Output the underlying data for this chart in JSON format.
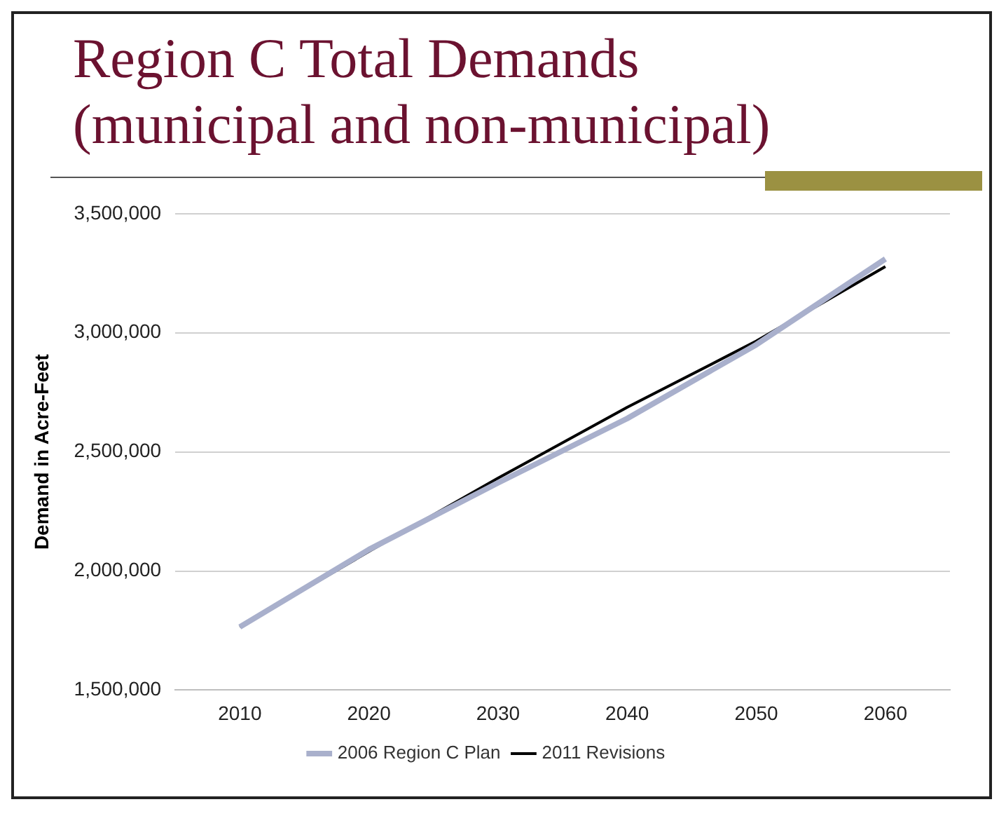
{
  "chart_data": {
    "type": "line",
    "title": "Region C Total Demands\n(municipal and non-municipal)",
    "ylabel": "Demand in Acre-Feet",
    "categories": [
      "2010",
      "2020",
      "2030",
      "2040",
      "2050",
      "2060"
    ],
    "series": [
      {
        "name": "2006 Region C Plan",
        "color": "#a9b0cc",
        "values": [
          1765000,
          2090000,
          2370000,
          2640000,
          2950000,
          3310000
        ]
      },
      {
        "name": "2011 Revisions",
        "color": "#000000",
        "values": [
          1765000,
          2082000,
          2390000,
          2687000,
          2965000,
          3278000
        ]
      }
    ],
    "ylim": [
      1500000,
      3500000
    ],
    "yticks": [
      {
        "value": 1500000,
        "label": "1,500,000"
      },
      {
        "value": 2000000,
        "label": "2,000,000"
      },
      {
        "value": 2500000,
        "label": "2,500,000"
      },
      {
        "value": 3000000,
        "label": "3,000,000"
      },
      {
        "value": 3500000,
        "label": "3,500,000"
      }
    ],
    "grid": "y",
    "legend": "bottom",
    "marker": "none",
    "line_style": "solid"
  }
}
